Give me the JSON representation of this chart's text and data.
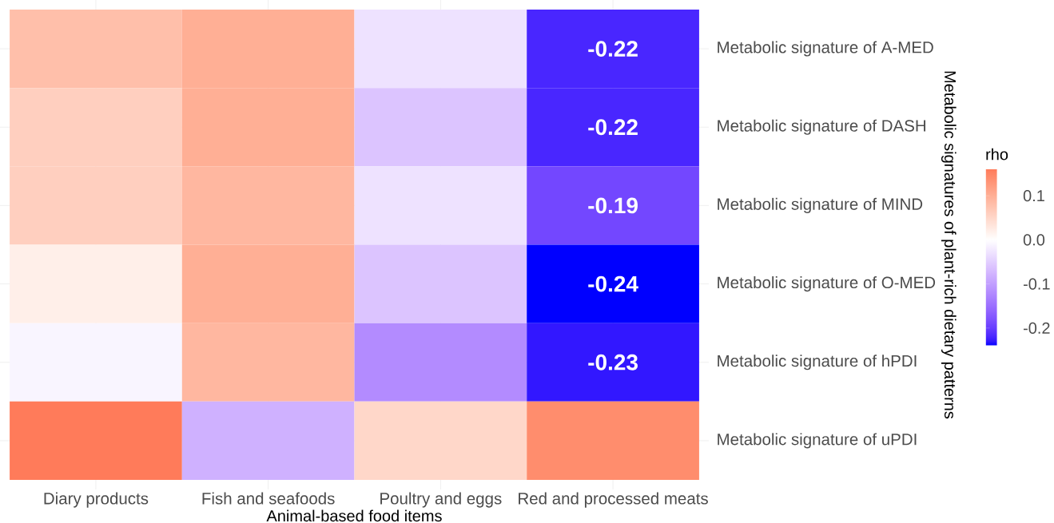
{
  "chart_data": {
    "type": "heatmap",
    "xlabel": "Animal-based food items",
    "ylabel": "Metabolic signatures of plant-rich dietary patterns",
    "clabel": "rho",
    "categories": [
      "Diary products",
      "Fish and seafoods",
      "Poultry and eggs",
      "Red and processed meats"
    ],
    "y_categories": [
      "Metabolic signature of A-MED",
      "Metabolic signature of DASH",
      "Metabolic signature of MIND",
      "Metabolic signature of O-MED",
      "Metabolic signature of hPDI",
      "Metabolic signature of uPDI"
    ],
    "cells": [
      [
        0.08,
        0.1,
        -0.03,
        -0.22
      ],
      [
        0.06,
        0.1,
        -0.06,
        -0.22
      ],
      [
        0.06,
        0.09,
        -0.03,
        -0.19
      ],
      [
        0.02,
        0.1,
        -0.06,
        -0.24
      ],
      [
        -0.01,
        0.09,
        -0.12,
        -0.23
      ],
      [
        0.16,
        -0.08,
        0.05,
        0.14
      ]
    ],
    "cell_labels": [
      [
        null,
        null,
        null,
        "-0.22"
      ],
      [
        null,
        null,
        null,
        "-0.22"
      ],
      [
        null,
        null,
        null,
        "-0.19"
      ],
      [
        null,
        null,
        null,
        "-0.24"
      ],
      [
        null,
        null,
        null,
        "-0.23"
      ],
      [
        null,
        null,
        null,
        null
      ]
    ],
    "clim": [
      -0.24,
      0.16
    ],
    "cticks": [
      -0.2,
      -0.1,
      {
        "value": 0,
        "label": "0.0"
      },
      0.1
    ],
    "grid": true
  }
}
